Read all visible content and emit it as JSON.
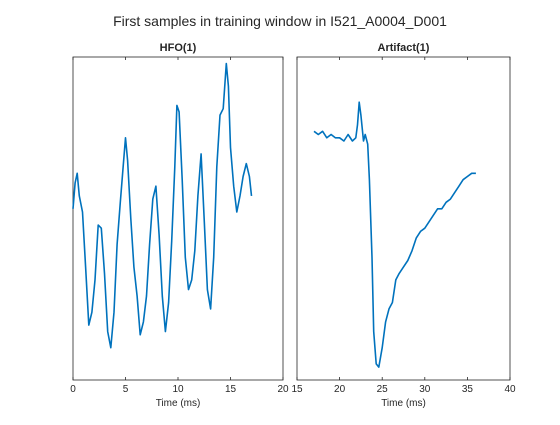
{
  "figure": {
    "title": "First samples in training window in I521_A0004_D001"
  },
  "chart_data": [
    {
      "type": "line",
      "title": "HFO(1)",
      "xlabel": "Time (ms)",
      "ylabel": "",
      "xlim": [
        0,
        20
      ],
      "ylim": [
        0,
        1
      ],
      "xticks": [
        0,
        5,
        10,
        15,
        20
      ],
      "yticks": [],
      "color": "#0072BD",
      "series": [
        {
          "x": [
            0.0,
            0.2,
            0.4,
            0.6,
            0.9,
            1.2,
            1.5,
            1.8,
            2.1,
            2.4,
            2.7,
            3.0,
            3.3,
            3.6,
            3.9,
            4.2,
            4.5,
            4.8,
            5.0,
            5.2,
            5.5,
            5.8,
            6.1,
            6.4,
            6.7,
            7.0,
            7.3,
            7.6,
            7.9,
            8.2,
            8.5,
            8.8,
            9.1,
            9.4,
            9.7,
            9.9,
            10.1,
            10.4,
            10.7,
            11.0,
            11.3,
            11.6,
            11.9,
            12.2,
            12.5,
            12.8,
            13.1,
            13.4,
            13.7,
            14.0,
            14.3,
            14.6,
            14.8,
            15.0,
            15.3,
            15.6,
            15.9,
            16.2,
            16.5,
            16.8,
            17.0
          ],
          "y": [
            0.53,
            0.61,
            0.64,
            0.57,
            0.52,
            0.35,
            0.17,
            0.21,
            0.31,
            0.48,
            0.47,
            0.33,
            0.15,
            0.1,
            0.21,
            0.42,
            0.55,
            0.67,
            0.75,
            0.68,
            0.5,
            0.35,
            0.26,
            0.14,
            0.18,
            0.26,
            0.42,
            0.56,
            0.6,
            0.45,
            0.26,
            0.15,
            0.24,
            0.43,
            0.66,
            0.85,
            0.83,
            0.62,
            0.38,
            0.28,
            0.31,
            0.4,
            0.57,
            0.7,
            0.49,
            0.28,
            0.22,
            0.38,
            0.66,
            0.82,
            0.84,
            0.98,
            0.91,
            0.72,
            0.6,
            0.52,
            0.57,
            0.63,
            0.67,
            0.63,
            0.57
          ]
        }
      ]
    },
    {
      "type": "line",
      "title": "Artifact(1)",
      "xlabel": "Time (ms)",
      "ylabel": "",
      "xlim": [
        15,
        40
      ],
      "ylim": [
        0,
        1
      ],
      "xticks": [
        15,
        20,
        25,
        30,
        35,
        40
      ],
      "yticks": [],
      "color": "#0072BD",
      "series": [
        {
          "x": [
            17.0,
            17.5,
            18.0,
            18.5,
            19.0,
            19.5,
            20.0,
            20.5,
            21.0,
            21.5,
            21.9,
            22.1,
            22.3,
            22.5,
            22.8,
            23.0,
            23.3,
            23.5,
            23.8,
            24.0,
            24.3,
            24.6,
            25.0,
            25.4,
            25.8,
            26.2,
            26.6,
            27.0,
            27.5,
            28.0,
            28.5,
            29.0,
            29.5,
            30.0,
            30.5,
            31.0,
            31.5,
            32.0,
            32.5,
            33.0,
            33.5,
            34.0,
            34.5,
            35.0,
            35.5,
            36.0
          ],
          "y": [
            0.77,
            0.76,
            0.77,
            0.75,
            0.76,
            0.75,
            0.75,
            0.74,
            0.76,
            0.74,
            0.75,
            0.79,
            0.86,
            0.82,
            0.74,
            0.76,
            0.73,
            0.62,
            0.38,
            0.15,
            0.05,
            0.04,
            0.1,
            0.18,
            0.22,
            0.24,
            0.31,
            0.33,
            0.35,
            0.37,
            0.4,
            0.44,
            0.46,
            0.47,
            0.49,
            0.51,
            0.53,
            0.53,
            0.55,
            0.56,
            0.58,
            0.6,
            0.62,
            0.63,
            0.64,
            0.64
          ]
        }
      ]
    }
  ]
}
